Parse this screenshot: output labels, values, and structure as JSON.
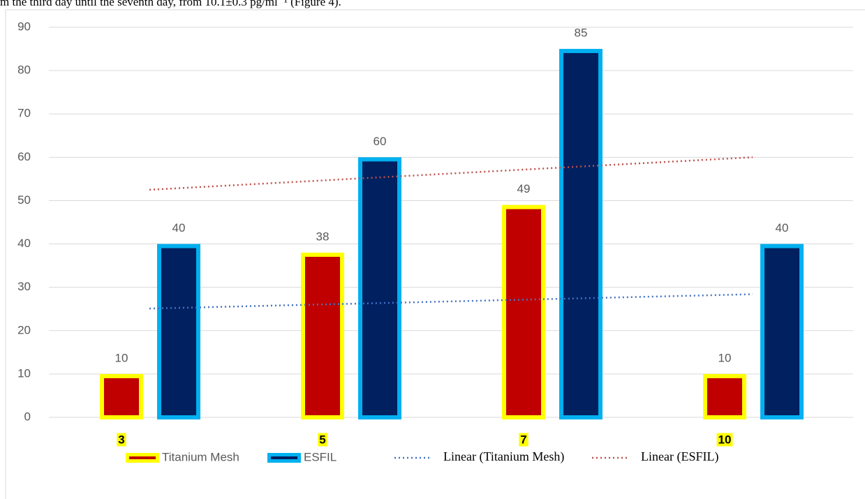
{
  "caption": "m the third day until the seventh day, from 10.1±0.3 pg/ml⁻¹ (Figure 4).",
  "chart_data": {
    "type": "bar",
    "categories": [
      "3",
      "5",
      "7",
      "10"
    ],
    "series": [
      {
        "name": "Titanium Mesh",
        "color": "#c00000",
        "border": "#ffff00",
        "values": [
          10,
          38,
          49,
          10
        ]
      },
      {
        "name": "ESFIL",
        "color": "#002060",
        "border": "#00b0f0",
        "values": [
          40,
          60,
          85,
          40
        ]
      }
    ],
    "trendlines": [
      {
        "name": "Linear (Titanium Mesh)",
        "color": "#4472c4",
        "values": [
          25.1,
          26.2,
          27.3,
          28.4
        ]
      },
      {
        "name": "Linear (ESFIL)",
        "color": "#c0504d",
        "values": [
          52.5,
          55,
          57.5,
          60
        ]
      }
    ],
    "ylim": [
      0,
      90
    ],
    "yticks": [
      0,
      10,
      20,
      30,
      40,
      50,
      60,
      70,
      80,
      90
    ],
    "grid": true,
    "legend": "bottom"
  }
}
